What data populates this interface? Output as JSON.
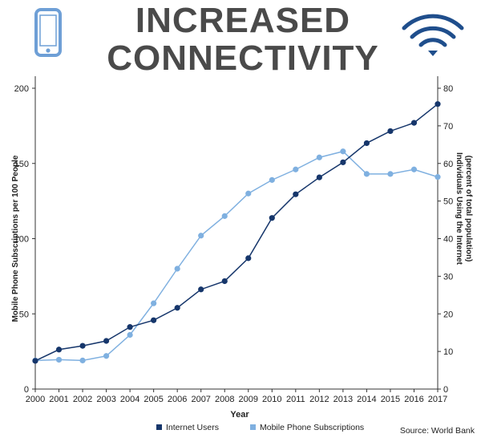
{
  "header": {
    "title_line1": "INCREASED",
    "title_line2": "CONNECTIVITY",
    "left_icon": "phone-icon",
    "right_icon": "wifi-icon"
  },
  "colors": {
    "internet": "#16366b",
    "mobile": "#7fb0e0",
    "icon": "#6e9fd6",
    "wifi": "#1f4e8c"
  },
  "source": "Source: World Bank",
  "chart_data": {
    "type": "line",
    "xlabel": "Year",
    "ylabel_left": "Mobile Phone Subscriptions per 100 People",
    "ylabel_right": "Individuals Using the Internet",
    "ylabel_right_sub": "(percent of total population)",
    "x": [
      "2000",
      "2001",
      "2002",
      "2003",
      "2004",
      "2005",
      "2006",
      "2007",
      "2008",
      "2009",
      "2010",
      "2011",
      "2012",
      "2013",
      "2014",
      "2015",
      "2016",
      "2017"
    ],
    "y_left_ticks": [
      0,
      50,
      100,
      150,
      200
    ],
    "y_right_ticks": [
      0,
      10,
      20,
      30,
      40,
      50,
      60,
      70,
      80
    ],
    "ylim_left": [
      0,
      200
    ],
    "ylim_right": [
      0,
      80
    ],
    "legend_placement": "bottom",
    "series": [
      {
        "name": "Internet Users",
        "axis": "right",
        "values": [
          7.5,
          10.5,
          11.5,
          12.8,
          16.5,
          18.3,
          21.6,
          26.5,
          28.7,
          34.8,
          45.5,
          51.8,
          56.3,
          60.3,
          65.4,
          68.6,
          70.8,
          75.8
        ]
      },
      {
        "name": "Mobile Phone Subscriptions",
        "axis": "left",
        "values": [
          19,
          19.5,
          19,
          22,
          36,
          57,
          80,
          102,
          115,
          130,
          139,
          146,
          154,
          158,
          143,
          143,
          146,
          141
        ]
      }
    ]
  }
}
